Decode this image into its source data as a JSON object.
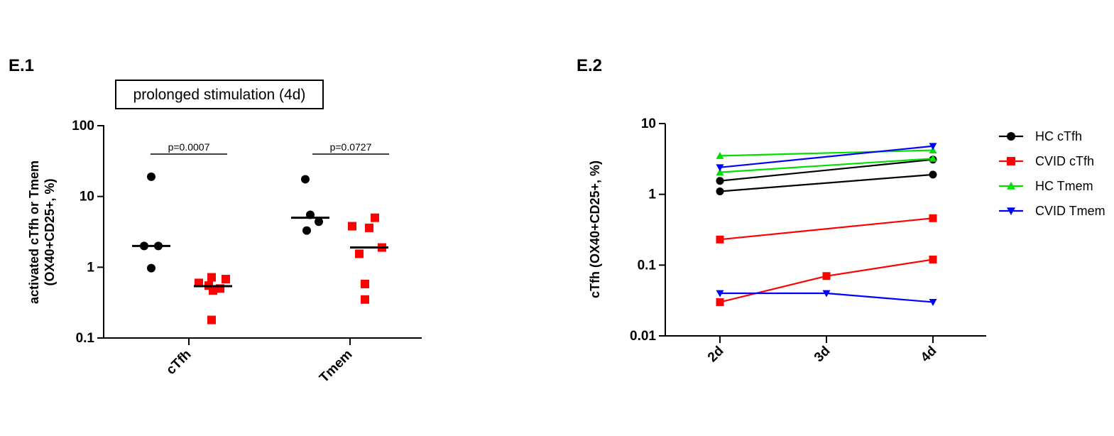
{
  "chart_data": [
    {
      "panel_label": "E.1",
      "type": "scatter",
      "subtitle": "prolonged stimulation (4d)",
      "ylabel_line1": "activated cTfh or  Tmem",
      "ylabel_line2": "(OX40+CD25+, %)",
      "y_scale": "log",
      "ylim": [
        0.1,
        100
      ],
      "y_ticks": [
        {
          "value": 0.1,
          "label": "0.1"
        },
        {
          "value": 1,
          "label": "1"
        },
        {
          "value": 10,
          "label": "10"
        },
        {
          "value": 100,
          "label": "100"
        }
      ],
      "categories": [
        "cTfh",
        "Tmem"
      ],
      "groups": [
        {
          "category": "cTfh",
          "subgroups": [
            {
              "color": "#000000",
              "marker": "circle",
              "values": [
                19,
                2.0,
                2.0,
                0.97
              ],
              "median": 2.0
            },
            {
              "color": "#ff0000",
              "marker": "square",
              "values": [
                0.6,
                0.72,
                0.68,
                0.55,
                0.47,
                0.5,
                0.18
              ],
              "median": 0.54
            }
          ],
          "pvalue": "p=0.0007"
        },
        {
          "category": "Tmem",
          "subgroups": [
            {
              "color": "#000000",
              "marker": "circle",
              "values": [
                17.5,
                5.5,
                4.4,
                3.3
              ],
              "median": 5.0
            },
            {
              "color": "#ff0000",
              "marker": "square",
              "values": [
                3.8,
                3.6,
                5.0,
                1.9,
                1.55,
                0.58,
                0.35
              ],
              "median": 1.9
            }
          ],
          "pvalue": "p=0.0727"
        }
      ]
    },
    {
      "panel_label": "E.2",
      "type": "line",
      "ylabel": "cTfh (OX40+CD25+, %)",
      "y_scale": "log",
      "ylim": [
        0.01,
        10
      ],
      "y_ticks": [
        {
          "value": 0.01,
          "label": "0.01"
        },
        {
          "value": 0.1,
          "label": "0.1"
        },
        {
          "value": 1,
          "label": "1"
        },
        {
          "value": 10,
          "label": "10"
        }
      ],
      "categories": [
        "2d",
        "3d",
        "4d"
      ],
      "legend_position": "right",
      "legend": [
        {
          "name": "HC cTfh",
          "color": "#000000",
          "marker": "circle"
        },
        {
          "name": "CVID cTfh",
          "color": "#ff0000",
          "marker": "square"
        },
        {
          "name": "HC Tmem",
          "color": "#00e000",
          "marker": "triangle-up"
        },
        {
          "name": "CVID Tmem",
          "color": "#0000ff",
          "marker": "triangle-down"
        }
      ],
      "series": [
        {
          "group": "HC cTfh",
          "color": "#000000",
          "marker": "circle",
          "points": [
            {
              "x": "2d",
              "y": 1.55
            },
            {
              "x": "4d",
              "y": 3.1
            }
          ]
        },
        {
          "group": "HC cTfh",
          "color": "#000000",
          "marker": "circle",
          "points": [
            {
              "x": "2d",
              "y": 1.1
            },
            {
              "x": "4d",
              "y": 1.9
            }
          ]
        },
        {
          "group": "CVID cTfh",
          "color": "#ff0000",
          "marker": "square",
          "points": [
            {
              "x": "2d",
              "y": 0.23
            },
            {
              "x": "4d",
              "y": 0.46
            }
          ]
        },
        {
          "group": "CVID cTfh",
          "color": "#ff0000",
          "marker": "square",
          "points": [
            {
              "x": "2d",
              "y": 0.03
            },
            {
              "x": "3d",
              "y": 0.07
            },
            {
              "x": "4d",
              "y": 0.12
            }
          ]
        },
        {
          "group": "HC Tmem",
          "color": "#00e000",
          "marker": "triangle-up",
          "points": [
            {
              "x": "2d",
              "y": 3.5
            },
            {
              "x": "4d",
              "y": 4.2
            }
          ]
        },
        {
          "group": "HC Tmem",
          "color": "#00e000",
          "marker": "triangle-up",
          "points": [
            {
              "x": "2d",
              "y": 2.05
            },
            {
              "x": "4d",
              "y": 3.2
            }
          ]
        },
        {
          "group": "CVID Tmem",
          "color": "#0000ff",
          "marker": "triangle-down",
          "points": [
            {
              "x": "2d",
              "y": 2.4
            },
            {
              "x": "4d",
              "y": 4.8
            }
          ]
        },
        {
          "group": "CVID Tmem",
          "color": "#0000ff",
          "marker": "triangle-down",
          "points": [
            {
              "x": "2d",
              "y": 0.04
            },
            {
              "x": "3d",
              "y": 0.04
            },
            {
              "x": "4d",
              "y": 0.03
            }
          ]
        }
      ]
    }
  ]
}
